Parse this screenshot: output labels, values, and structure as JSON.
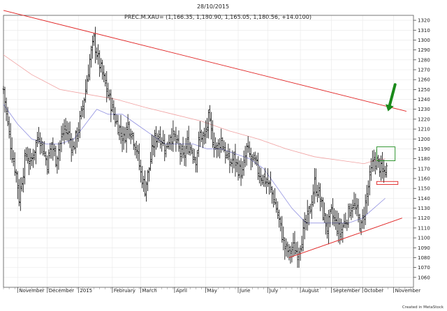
{
  "header": {
    "date": "28/10/2015",
    "instrument": "PREC.M.XAU= (1,166.35, 1,180.90, 1,165.05, 1,180.56, +14.0100)"
  },
  "footer": {
    "credit": "Created in MetaStock"
  },
  "colors": {
    "bars": "#000000",
    "trendline": "#e02020",
    "ma_long": "#f0a0a0",
    "ma_short": "#9090e0",
    "arrow": "#1a8a1a",
    "target_box": "#1a8a1a",
    "level_box": "#e02020",
    "grid": "#e8e8e8"
  },
  "chart_data": {
    "type": "ohlc",
    "ylim": [
      1050,
      1325
    ],
    "y_ticks": [
      1060,
      1070,
      1080,
      1090,
      1100,
      1110,
      1120,
      1130,
      1140,
      1150,
      1160,
      1170,
      1180,
      1190,
      1200,
      1210,
      1220,
      1230,
      1240,
      1250,
      1260,
      1270,
      1280,
      1290,
      1300,
      1310,
      1320
    ],
    "x_range": [
      0,
      290
    ],
    "x_labels": [
      {
        "label": "November",
        "x": 10
      },
      {
        "label": "December",
        "x": 31
      },
      {
        "label": "2015",
        "x": 53
      },
      {
        "label": "February",
        "x": 77
      },
      {
        "label": "March",
        "x": 97
      },
      {
        "label": "April",
        "x": 121
      },
      {
        "label": "May",
        "x": 143
      },
      {
        "label": "June",
        "x": 166
      },
      {
        "label": "July",
        "x": 187
      },
      {
        "label": "August",
        "x": 210
      },
      {
        "label": "September",
        "x": 232
      },
      {
        "label": "October",
        "x": 254
      },
      {
        "label": "November",
        "x": 276
      }
    ],
    "anchors": [
      [
        0,
        1250
      ],
      [
        3,
        1215
      ],
      [
        6,
        1185
      ],
      [
        9,
        1165
      ],
      [
        11,
        1140
      ],
      [
        13,
        1160
      ],
      [
        16,
        1185
      ],
      [
        19,
        1175
      ],
      [
        22,
        1190
      ],
      [
        25,
        1205
      ],
      [
        28,
        1190
      ],
      [
        31,
        1175
      ],
      [
        34,
        1195
      ],
      [
        37,
        1180
      ],
      [
        40,
        1195
      ],
      [
        43,
        1210
      ],
      [
        46,
        1205
      ],
      [
        49,
        1190
      ],
      [
        52,
        1205
      ],
      [
        55,
        1225
      ],
      [
        58,
        1250
      ],
      [
        61,
        1280
      ],
      [
        64,
        1300
      ],
      [
        67,
        1280
      ],
      [
        70,
        1265
      ],
      [
        73,
        1250
      ],
      [
        76,
        1235
      ],
      [
        79,
        1220
      ],
      [
        82,
        1210
      ],
      [
        85,
        1200
      ],
      [
        88,
        1215
      ],
      [
        91,
        1205
      ],
      [
        94,
        1190
      ],
      [
        97,
        1165
      ],
      [
        100,
        1150
      ],
      [
        103,
        1170
      ],
      [
        106,
        1195
      ],
      [
        109,
        1205
      ],
      [
        112,
        1200
      ],
      [
        115,
        1190
      ],
      [
        118,
        1205
      ],
      [
        121,
        1200
      ],
      [
        124,
        1190
      ],
      [
        127,
        1180
      ],
      [
        130,
        1195
      ],
      [
        133,
        1190
      ],
      [
        136,
        1180
      ],
      [
        139,
        1205
      ],
      [
        142,
        1200
      ],
      [
        145,
        1220
      ],
      [
        148,
        1200
      ],
      [
        151,
        1190
      ],
      [
        154,
        1200
      ],
      [
        157,
        1185
      ],
      [
        160,
        1175
      ],
      [
        163,
        1180
      ],
      [
        166,
        1170
      ],
      [
        169,
        1165
      ],
      [
        172,
        1190
      ],
      [
        175,
        1180
      ],
      [
        178,
        1175
      ],
      [
        181,
        1165
      ],
      [
        184,
        1160
      ],
      [
        187,
        1155
      ],
      [
        190,
        1145
      ],
      [
        193,
        1130
      ],
      [
        196,
        1110
      ],
      [
        199,
        1090
      ],
      [
        202,
        1085
      ],
      [
        205,
        1090
      ],
      [
        208,
        1085
      ],
      [
        211,
        1100
      ],
      [
        214,
        1115
      ],
      [
        217,
        1130
      ],
      [
        220,
        1155
      ],
      [
        223,
        1145
      ],
      [
        226,
        1125
      ],
      [
        229,
        1110
      ],
      [
        232,
        1125
      ],
      [
        235,
        1115
      ],
      [
        238,
        1105
      ],
      [
        241,
        1115
      ],
      [
        244,
        1125
      ],
      [
        247,
        1135
      ],
      [
        250,
        1125
      ],
      [
        253,
        1110
      ],
      [
        256,
        1135
      ],
      [
        259,
        1160
      ],
      [
        262,
        1180
      ],
      [
        265,
        1175
      ],
      [
        268,
        1165
      ],
      [
        271,
        1170
      ]
    ],
    "ma_long": [
      [
        0,
        1285
      ],
      [
        20,
        1265
      ],
      [
        40,
        1250
      ],
      [
        60,
        1245
      ],
      [
        80,
        1240
      ],
      [
        100,
        1232
      ],
      [
        120,
        1225
      ],
      [
        140,
        1218
      ],
      [
        160,
        1208
      ],
      [
        180,
        1200
      ],
      [
        200,
        1190
      ],
      [
        220,
        1182
      ],
      [
        240,
        1178
      ],
      [
        255,
        1175
      ],
      [
        262,
        1178
      ],
      [
        270,
        1180
      ]
    ],
    "ma_short": [
      [
        0,
        1235
      ],
      [
        10,
        1215
      ],
      [
        20,
        1200
      ],
      [
        30,
        1195
      ],
      [
        40,
        1195
      ],
      [
        50,
        1200
      ],
      [
        58,
        1215
      ],
      [
        66,
        1230
      ],
      [
        74,
        1225
      ],
      [
        84,
        1225
      ],
      [
        94,
        1215
      ],
      [
        104,
        1205
      ],
      [
        114,
        1195
      ],
      [
        124,
        1195
      ],
      [
        134,
        1195
      ],
      [
        144,
        1190
      ],
      [
        154,
        1190
      ],
      [
        164,
        1185
      ],
      [
        174,
        1180
      ],
      [
        184,
        1170
      ],
      [
        194,
        1150
      ],
      [
        204,
        1130
      ],
      [
        214,
        1115
      ],
      [
        224,
        1115
      ],
      [
        234,
        1115
      ],
      [
        244,
        1115
      ],
      [
        254,
        1120
      ],
      [
        262,
        1130
      ],
      [
        270,
        1140
      ]
    ],
    "trendlines": [
      {
        "x1": 0,
        "y1": 1330,
        "x2": 285,
        "y2": 1228
      },
      {
        "x1": 202,
        "y1": 1080,
        "x2": 282,
        "y2": 1120
      }
    ],
    "annotations": {
      "arrow": {
        "x_from": 277,
        "y_from": 1255,
        "x_to": 272,
        "y_to": 1228
      },
      "target_box": {
        "x1": 264,
        "y1": 1178,
        "x2": 277,
        "y2": 1192
      },
      "level_box": {
        "x1": 264,
        "y1": 1154,
        "x2": 279,
        "y2": 1157
      }
    }
  }
}
